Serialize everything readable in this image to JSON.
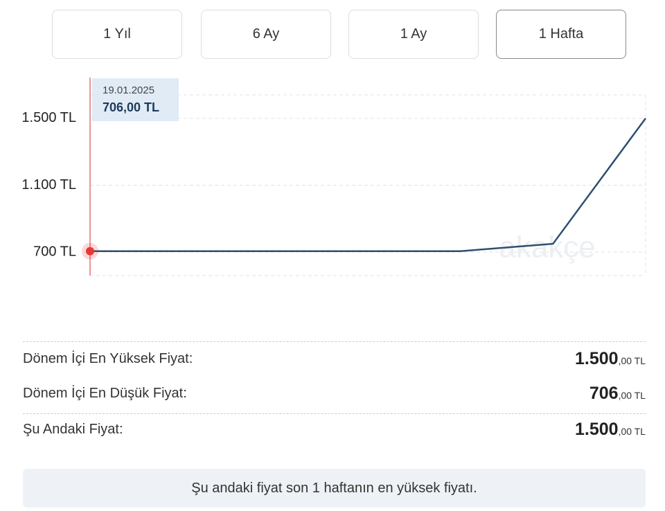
{
  "buttons": [
    "1 Yıl",
    "6 Ay",
    "1 Ay",
    "1 Hafta"
  ],
  "selected_button": 3,
  "chart_data": {
    "type": "line",
    "categories": [
      null,
      null,
      null,
      null,
      null,
      null,
      null
    ],
    "series": [
      {
        "name": null,
        "color": "#2e4e6e",
        "values": [
          706,
          706,
          706,
          706,
          706,
          750,
          1500
        ]
      }
    ],
    "ylim": [
      560,
      1640
    ],
    "yticks": [
      {
        "value": 700,
        "label": "700 TL"
      },
      {
        "value": 1100,
        "label": "1.100 TL"
      },
      {
        "value": 1500,
        "label": "1.500 TL"
      }
    ],
    "grid": true,
    "tooltip": {
      "date": "19.01.2025",
      "value": "706,00 TL"
    },
    "watermark": "akakçe"
  },
  "stats": [
    {
      "label": "Dönem İçi En Yüksek Fiyat:",
      "value": "1.500",
      "suffix": ",00 TL"
    },
    {
      "label": "Dönem İçi En Düşük Fiyat:",
      "value": "706",
      "suffix": ",00 TL"
    },
    {
      "label": "Şu Andaki Fiyat:",
      "value": "1.500",
      "suffix": ",00 TL"
    }
  ],
  "note": "Şu andaki fiyat son 1 haftanın en yüksek fiyatı."
}
